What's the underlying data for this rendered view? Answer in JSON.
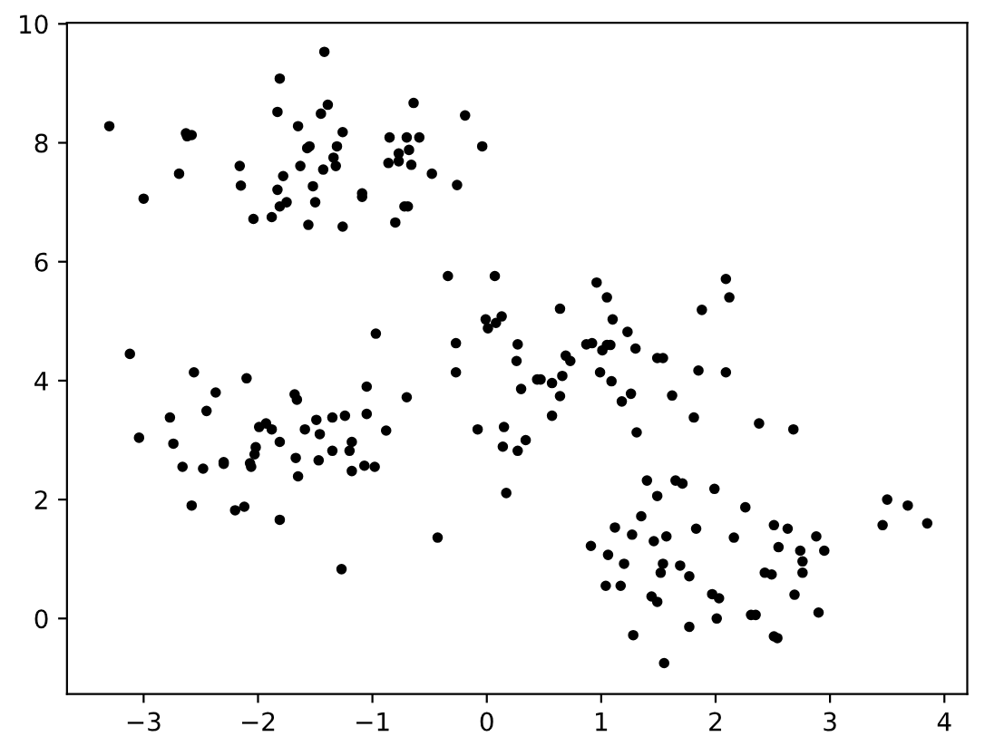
{
  "chart_data": {
    "type": "scatter",
    "marker": "circle",
    "grid": false,
    "xlim": [
      -3.67,
      4.2
    ],
    "ylim": [
      -1.27,
      10.02
    ],
    "xticks": [
      {
        "value": -3,
        "label": "−3"
      },
      {
        "value": -2,
        "label": "−2"
      },
      {
        "value": -1,
        "label": "−1"
      },
      0,
      1,
      2,
      3,
      4
    ],
    "yticks": [
      0,
      2,
      4,
      6,
      8,
      10
    ],
    "series": [
      {
        "color": "#000000",
        "x": [
          -3.3,
          -3.0,
          -2.69,
          -2.63,
          -2.62,
          -2.58,
          -2.16,
          -2.15,
          -2.04,
          -1.88,
          -1.83,
          -1.81,
          -1.83,
          -1.81,
          -1.78,
          -1.75,
          -1.65,
          -1.63,
          -1.57,
          -1.55,
          -1.56,
          -1.52,
          -1.5,
          -1.45,
          -1.42,
          -1.43,
          -1.39,
          -1.34,
          -1.32,
          -1.31,
          -1.26,
          -1.26,
          -1.09,
          -1.09,
          -0.86,
          -0.85,
          -0.8,
          -0.77,
          -0.77,
          -0.72,
          -0.69,
          -0.7,
          -0.68,
          -0.66,
          -0.64,
          -0.59,
          -0.48,
          -0.26,
          -0.19,
          -0.04,
          -3.12,
          -3.04,
          -2.77,
          -2.74,
          -2.66,
          -2.58,
          -2.56,
          -2.48,
          -2.45,
          -2.37,
          -2.3,
          -2.3,
          -2.2,
          -2.12,
          -2.1,
          -2.07,
          -2.06,
          -2.03,
          -2.02,
          -1.99,
          -1.93,
          -1.88,
          -1.81,
          -1.81,
          -1.68,
          -1.66,
          -1.67,
          -1.65,
          -1.59,
          -1.49,
          -1.46,
          -1.47,
          -1.35,
          -1.35,
          -1.27,
          -1.24,
          -1.2,
          -1.18,
          -1.18,
          -1.07,
          -1.05,
          -1.05,
          -0.98,
          -0.97,
          -0.88,
          -0.7,
          -0.43,
          -0.34,
          -0.27,
          -0.27,
          -0.08,
          -0.01,
          0.01,
          0.07,
          0.08,
          0.13,
          0.14,
          0.15,
          0.17,
          0.26,
          0.27,
          0.27,
          0.3,
          0.34,
          0.44,
          0.47,
          0.57,
          0.57,
          0.64,
          0.64,
          0.66,
          0.69,
          0.73,
          0.87,
          0.92,
          0.96,
          0.99,
          1.01,
          1.05,
          1.08,
          1.05,
          1.09,
          1.1,
          1.18,
          1.23,
          1.26,
          1.3,
          1.31,
          1.49,
          1.54,
          1.62,
          1.81,
          1.85,
          1.88,
          2.09,
          2.09,
          2.12,
          2.38,
          2.68,
          0.91,
          1.04,
          1.06,
          1.12,
          1.17,
          1.2,
          1.27,
          1.28,
          1.35,
          1.4,
          1.44,
          1.46,
          1.49,
          1.49,
          1.52,
          1.54,
          1.55,
          1.57,
          1.65,
          1.71,
          1.69,
          1.77,
          1.77,
          1.83,
          1.97,
          1.99,
          2.03,
          2.01,
          2.16,
          2.26,
          2.31,
          2.35,
          2.43,
          2.49,
          2.51,
          2.51,
          2.54,
          2.55,
          2.63,
          2.69,
          2.74,
          2.76,
          2.76,
          2.88,
          2.9,
          2.95,
          3.46,
          3.5,
          3.68,
          3.85
        ],
        "values": [
          8.28,
          7.06,
          7.48,
          8.16,
          8.11,
          8.13,
          7.61,
          7.28,
          6.72,
          6.75,
          8.52,
          9.08,
          7.21,
          6.93,
          7.44,
          7.0,
          8.28,
          7.61,
          7.91,
          7.94,
          6.62,
          7.27,
          7.0,
          8.49,
          9.53,
          7.55,
          8.64,
          7.75,
          7.61,
          7.94,
          8.18,
          6.59,
          7.15,
          7.09,
          7.66,
          8.09,
          6.66,
          7.82,
          7.69,
          6.93,
          6.93,
          8.09,
          7.88,
          7.63,
          8.67,
          8.09,
          7.48,
          7.29,
          8.46,
          7.94,
          4.45,
          3.04,
          3.38,
          2.94,
          2.55,
          1.9,
          4.14,
          2.52,
          3.49,
          3.8,
          2.63,
          2.6,
          1.82,
          1.88,
          4.04,
          2.61,
          2.55,
          2.76,
          2.88,
          3.22,
          3.28,
          3.18,
          2.97,
          1.66,
          3.77,
          3.68,
          2.7,
          2.39,
          3.18,
          3.34,
          3.1,
          2.66,
          2.82,
          3.38,
          0.83,
          3.41,
          2.82,
          2.97,
          2.48,
          2.57,
          3.44,
          3.9,
          2.55,
          4.79,
          3.16,
          3.72,
          1.36,
          5.76,
          4.63,
          4.14,
          3.18,
          5.03,
          4.88,
          5.76,
          4.97,
          5.08,
          2.89,
          3.22,
          2.11,
          4.33,
          4.61,
          2.82,
          3.86,
          3.0,
          4.02,
          4.02,
          3.41,
          3.96,
          5.21,
          3.74,
          4.08,
          4.42,
          4.33,
          4.61,
          4.63,
          5.65,
          4.14,
          4.51,
          4.6,
          4.6,
          5.4,
          3.99,
          5.03,
          3.65,
          4.82,
          3.78,
          4.54,
          3.13,
          4.38,
          4.38,
          3.75,
          3.38,
          4.17,
          5.19,
          5.71,
          4.14,
          5.4,
          3.28,
          3.18,
          1.22,
          0.55,
          1.07,
          1.53,
          0.55,
          0.92,
          1.41,
          -0.28,
          1.72,
          2.32,
          0.37,
          1.3,
          0.28,
          2.06,
          0.77,
          0.92,
          -0.75,
          1.38,
          2.32,
          2.27,
          0.89,
          0.71,
          -0.14,
          1.51,
          0.41,
          2.18,
          0.34,
          0.0,
          1.36,
          1.87,
          0.06,
          0.06,
          0.77,
          0.74,
          1.57,
          -0.3,
          -0.33,
          1.2,
          1.51,
          0.4,
          1.14,
          0.96,
          0.77,
          1.38,
          0.1,
          1.14,
          1.57,
          2.0,
          1.9,
          1.6
        ]
      }
    ]
  }
}
